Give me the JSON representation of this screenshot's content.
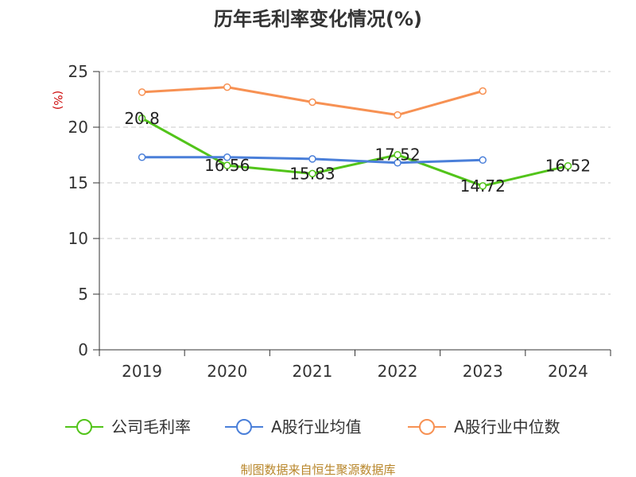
{
  "chart_data": {
    "type": "line",
    "title": "历年毛利率变化情况(%)",
    "ylabel": "(%)",
    "xlabel": "",
    "categories": [
      "2019",
      "2020",
      "2021",
      "2022",
      "2023",
      "2024"
    ],
    "ylim": [
      0,
      25
    ],
    "yticks": [
      0,
      5,
      10,
      15,
      20,
      25
    ],
    "grid": true,
    "legend_position": "bottom",
    "series": [
      {
        "name": "公司毛利率",
        "color": "#52c41a",
        "values": [
          20.8,
          16.56,
          15.83,
          17.52,
          14.72,
          16.52
        ],
        "labels": [
          "20.8",
          "16.56",
          "15.83",
          "17.52",
          "14.72",
          "16.52"
        ]
      },
      {
        "name": "A股行业均值",
        "color": "#4a7fd9",
        "values": [
          17.3,
          17.3,
          17.15,
          16.8,
          17.05,
          null
        ],
        "labels": []
      },
      {
        "name": "A股行业中位数",
        "color": "#f79153",
        "values": [
          23.15,
          23.6,
          22.25,
          21.1,
          23.25,
          null
        ],
        "labels": []
      }
    ]
  },
  "footer": "制图数据来自恒生聚源数据库"
}
